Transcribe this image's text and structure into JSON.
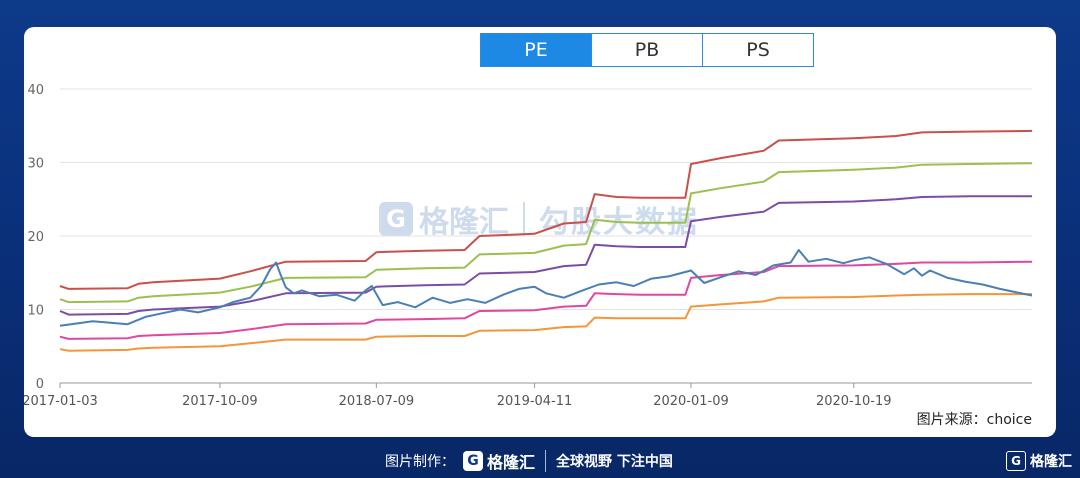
{
  "tabs": [
    {
      "label": "PE",
      "active": true
    },
    {
      "label": "PB",
      "active": false
    },
    {
      "label": "PS",
      "active": false
    }
  ],
  "watermark": {
    "logo_letter": "G",
    "brand": "格隆汇",
    "text": "勾股大数据"
  },
  "source": "图片来源：choice",
  "footer": {
    "credit_label": "图片制作：",
    "logo_letter": "G",
    "brand": "格隆汇",
    "slogan": "全球视野 下注中国",
    "corner_brand": "格隆汇",
    "corner_logo_letter": "G"
  },
  "colors": {
    "background": "#0b3380",
    "active_tab": "#1e88e5",
    "pe_line": "#4a7fb5",
    "band_red": "#c9504b",
    "band_green": "#9cc04f",
    "band_purple": "#7b4ea3",
    "band_pink": "#e0479e",
    "band_orange": "#f5953a"
  },
  "chart_data": {
    "type": "line",
    "title": "",
    "xlabel": "",
    "ylabel": "",
    "ylim": [
      0,
      40
    ],
    "yticks": [
      0,
      10,
      20,
      30,
      40
    ],
    "xlim": [
      "2017-01-03",
      "2021-08-26"
    ],
    "xticks": [
      "2017-01-03",
      "2017-10-09",
      "2018-07-09",
      "2019-04-11",
      "2020-01-09",
      "2020-10-19"
    ],
    "grid": true,
    "series": [
      {
        "color": "#c9504b",
        "points": [
          [
            "2017-01-03",
            13.2
          ],
          [
            "2017-01-18",
            12.8
          ],
          [
            "2017-05-01",
            12.9
          ],
          [
            "2017-05-20",
            13.5
          ],
          [
            "2017-06-15",
            13.7
          ],
          [
            "2017-10-09",
            14.2
          ],
          [
            "2017-12-01",
            15.2
          ],
          [
            "2018-02-01",
            16.5
          ],
          [
            "2018-06-20",
            16.6
          ],
          [
            "2018-07-09",
            17.8
          ],
          [
            "2018-10-01",
            18.0
          ],
          [
            "2018-12-10",
            18.1
          ],
          [
            "2019-01-05",
            20.0
          ],
          [
            "2019-04-11",
            20.3
          ],
          [
            "2019-06-01",
            21.7
          ],
          [
            "2019-07-10",
            21.9
          ],
          [
            "2019-07-25",
            25.7
          ],
          [
            "2019-09-01",
            25.3
          ],
          [
            "2019-10-15",
            25.2
          ],
          [
            "2019-12-30",
            25.2
          ],
          [
            "2020-01-09",
            29.8
          ],
          [
            "2020-03-01",
            30.6
          ],
          [
            "2020-05-15",
            31.6
          ],
          [
            "2020-06-10",
            33.0
          ],
          [
            "2020-10-19",
            33.3
          ],
          [
            "2021-01-01",
            33.6
          ],
          [
            "2021-02-15",
            34.1
          ],
          [
            "2021-05-10",
            34.2
          ],
          [
            "2021-08-26",
            34.3
          ]
        ]
      },
      {
        "color": "#9cc04f",
        "points": [
          [
            "2017-01-03",
            11.4
          ],
          [
            "2017-01-18",
            11.0
          ],
          [
            "2017-05-01",
            11.1
          ],
          [
            "2017-05-20",
            11.6
          ],
          [
            "2017-06-15",
            11.8
          ],
          [
            "2017-10-09",
            12.3
          ],
          [
            "2017-12-01",
            13.1
          ],
          [
            "2018-02-01",
            14.3
          ],
          [
            "2018-06-20",
            14.4
          ],
          [
            "2018-07-09",
            15.4
          ],
          [
            "2018-10-01",
            15.6
          ],
          [
            "2018-12-10",
            15.7
          ],
          [
            "2019-01-05",
            17.5
          ],
          [
            "2019-04-11",
            17.7
          ],
          [
            "2019-06-01",
            18.7
          ],
          [
            "2019-07-10",
            18.9
          ],
          [
            "2019-07-25",
            22.2
          ],
          [
            "2019-09-01",
            21.9
          ],
          [
            "2019-10-15",
            21.8
          ],
          [
            "2019-12-30",
            21.8
          ],
          [
            "2020-01-09",
            25.8
          ],
          [
            "2020-03-01",
            26.5
          ],
          [
            "2020-05-15",
            27.4
          ],
          [
            "2020-06-10",
            28.7
          ],
          [
            "2020-10-19",
            29.0
          ],
          [
            "2021-01-01",
            29.3
          ],
          [
            "2021-02-15",
            29.7
          ],
          [
            "2021-05-10",
            29.8
          ],
          [
            "2021-08-26",
            29.9
          ]
        ]
      },
      {
        "color": "#7b4ea3",
        "points": [
          [
            "2017-01-03",
            9.8
          ],
          [
            "2017-01-18",
            9.3
          ],
          [
            "2017-05-01",
            9.4
          ],
          [
            "2017-05-20",
            9.8
          ],
          [
            "2017-06-15",
            10.0
          ],
          [
            "2017-10-09",
            10.4
          ],
          [
            "2017-12-01",
            11.1
          ],
          [
            "2018-02-01",
            12.2
          ],
          [
            "2018-06-20",
            12.3
          ],
          [
            "2018-07-09",
            13.1
          ],
          [
            "2018-10-01",
            13.3
          ],
          [
            "2018-12-10",
            13.4
          ],
          [
            "2019-01-05",
            14.9
          ],
          [
            "2019-04-11",
            15.1
          ],
          [
            "2019-06-01",
            15.9
          ],
          [
            "2019-07-10",
            16.1
          ],
          [
            "2019-07-25",
            18.8
          ],
          [
            "2019-09-01",
            18.6
          ],
          [
            "2019-10-15",
            18.5
          ],
          [
            "2019-12-30",
            18.5
          ],
          [
            "2020-01-09",
            22.0
          ],
          [
            "2020-03-01",
            22.6
          ],
          [
            "2020-05-15",
            23.3
          ],
          [
            "2020-06-10",
            24.5
          ],
          [
            "2020-10-19",
            24.7
          ],
          [
            "2021-01-01",
            25.0
          ],
          [
            "2021-02-15",
            25.3
          ],
          [
            "2021-05-10",
            25.4
          ],
          [
            "2021-08-26",
            25.4
          ]
        ]
      },
      {
        "color": "#e0479e",
        "points": [
          [
            "2017-01-03",
            6.3
          ],
          [
            "2017-01-18",
            6.0
          ],
          [
            "2017-05-01",
            6.1
          ],
          [
            "2017-05-20",
            6.4
          ],
          [
            "2017-06-15",
            6.5
          ],
          [
            "2017-10-09",
            6.8
          ],
          [
            "2017-12-01",
            7.3
          ],
          [
            "2018-02-01",
            8.0
          ],
          [
            "2018-06-20",
            8.1
          ],
          [
            "2018-07-09",
            8.6
          ],
          [
            "2018-10-01",
            8.7
          ],
          [
            "2018-12-10",
            8.8
          ],
          [
            "2019-01-05",
            9.8
          ],
          [
            "2019-04-11",
            9.9
          ],
          [
            "2019-06-01",
            10.4
          ],
          [
            "2019-07-10",
            10.5
          ],
          [
            "2019-07-25",
            12.2
          ],
          [
            "2019-09-01",
            12.1
          ],
          [
            "2019-10-15",
            12.0
          ],
          [
            "2019-12-30",
            12.0
          ],
          [
            "2020-01-09",
            14.3
          ],
          [
            "2020-03-01",
            14.7
          ],
          [
            "2020-05-15",
            15.1
          ],
          [
            "2020-06-10",
            15.9
          ],
          [
            "2020-10-19",
            16.0
          ],
          [
            "2021-01-01",
            16.2
          ],
          [
            "2021-02-15",
            16.4
          ],
          [
            "2021-05-10",
            16.4
          ],
          [
            "2021-08-26",
            16.5
          ]
        ]
      },
      {
        "color": "#f5953a",
        "points": [
          [
            "2017-01-03",
            4.6
          ],
          [
            "2017-01-18",
            4.4
          ],
          [
            "2017-05-01",
            4.5
          ],
          [
            "2017-05-20",
            4.7
          ],
          [
            "2017-06-15",
            4.8
          ],
          [
            "2017-10-09",
            5.0
          ],
          [
            "2017-12-01",
            5.4
          ],
          [
            "2018-02-01",
            5.9
          ],
          [
            "2018-06-20",
            5.9
          ],
          [
            "2018-07-09",
            6.3
          ],
          [
            "2018-10-01",
            6.4
          ],
          [
            "2018-12-10",
            6.4
          ],
          [
            "2019-01-05",
            7.1
          ],
          [
            "2019-04-11",
            7.2
          ],
          [
            "2019-06-01",
            7.6
          ],
          [
            "2019-07-10",
            7.7
          ],
          [
            "2019-07-25",
            8.9
          ],
          [
            "2019-09-01",
            8.8
          ],
          [
            "2019-10-15",
            8.8
          ],
          [
            "2019-12-30",
            8.8
          ],
          [
            "2020-01-09",
            10.4
          ],
          [
            "2020-03-01",
            10.7
          ],
          [
            "2020-05-15",
            11.1
          ],
          [
            "2020-06-10",
            11.6
          ],
          [
            "2020-10-19",
            11.7
          ],
          [
            "2021-01-01",
            11.9
          ],
          [
            "2021-02-15",
            12.0
          ],
          [
            "2021-05-10",
            12.1
          ],
          [
            "2021-08-26",
            12.1
          ]
        ]
      },
      {
        "color": "#4a7fb5",
        "width": 2,
        "points": [
          [
            "2017-01-03",
            7.8
          ],
          [
            "2017-02-01",
            8.1
          ],
          [
            "2017-03-01",
            8.4
          ],
          [
            "2017-04-01",
            8.2
          ],
          [
            "2017-05-01",
            8.0
          ],
          [
            "2017-06-01",
            9.0
          ],
          [
            "2017-07-01",
            9.5
          ],
          [
            "2017-08-01",
            10.0
          ],
          [
            "2017-09-01",
            9.6
          ],
          [
            "2017-10-09",
            10.3
          ],
          [
            "2017-11-01",
            11.0
          ],
          [
            "2017-12-01",
            11.6
          ],
          [
            "2017-12-20",
            13.2
          ],
          [
            "2018-01-05",
            15.5
          ],
          [
            "2018-01-15",
            16.4
          ],
          [
            "2018-01-22",
            14.9
          ],
          [
            "2018-02-01",
            13.0
          ],
          [
            "2018-02-15",
            12.2
          ],
          [
            "2018-03-01",
            12.6
          ],
          [
            "2018-04-01",
            11.8
          ],
          [
            "2018-05-01",
            12.0
          ],
          [
            "2018-06-01",
            11.2
          ],
          [
            "2018-06-20",
            12.6
          ],
          [
            "2018-07-01",
            13.2
          ],
          [
            "2018-07-20",
            10.6
          ],
          [
            "2018-08-15",
            11.0
          ],
          [
            "2018-09-15",
            10.3
          ],
          [
            "2018-10-15",
            11.6
          ],
          [
            "2018-11-15",
            10.9
          ],
          [
            "2018-12-15",
            11.4
          ],
          [
            "2019-01-15",
            10.9
          ],
          [
            "2019-02-15",
            12.0
          ],
          [
            "2019-03-15",
            12.8
          ],
          [
            "2019-04-11",
            13.1
          ],
          [
            "2019-05-01",
            12.2
          ],
          [
            "2019-06-01",
            11.6
          ],
          [
            "2019-07-01",
            12.5
          ],
          [
            "2019-08-01",
            13.4
          ],
          [
            "2019-09-01",
            13.7
          ],
          [
            "2019-10-01",
            13.2
          ],
          [
            "2019-11-01",
            14.2
          ],
          [
            "2019-12-01",
            14.5
          ],
          [
            "2020-01-09",
            15.3
          ],
          [
            "2020-02-01",
            13.6
          ],
          [
            "2020-03-01",
            14.4
          ],
          [
            "2020-04-01",
            15.2
          ],
          [
            "2020-05-01",
            14.7
          ],
          [
            "2020-06-01",
            16.0
          ],
          [
            "2020-07-01",
            16.4
          ],
          [
            "2020-07-15",
            18.1
          ],
          [
            "2020-08-01",
            16.5
          ],
          [
            "2020-09-01",
            16.9
          ],
          [
            "2020-10-01",
            16.3
          ],
          [
            "2020-10-19",
            16.7
          ],
          [
            "2020-11-15",
            17.1
          ],
          [
            "2020-12-15",
            16.2
          ],
          [
            "2021-01-15",
            14.8
          ],
          [
            "2021-02-01",
            15.6
          ],
          [
            "2021-02-15",
            14.6
          ],
          [
            "2021-03-01",
            15.3
          ],
          [
            "2021-04-01",
            14.3
          ],
          [
            "2021-05-01",
            13.8
          ],
          [
            "2021-06-01",
            13.4
          ],
          [
            "2021-07-01",
            12.8
          ],
          [
            "2021-08-01",
            12.3
          ],
          [
            "2021-08-26",
            11.9
          ]
        ]
      }
    ]
  }
}
